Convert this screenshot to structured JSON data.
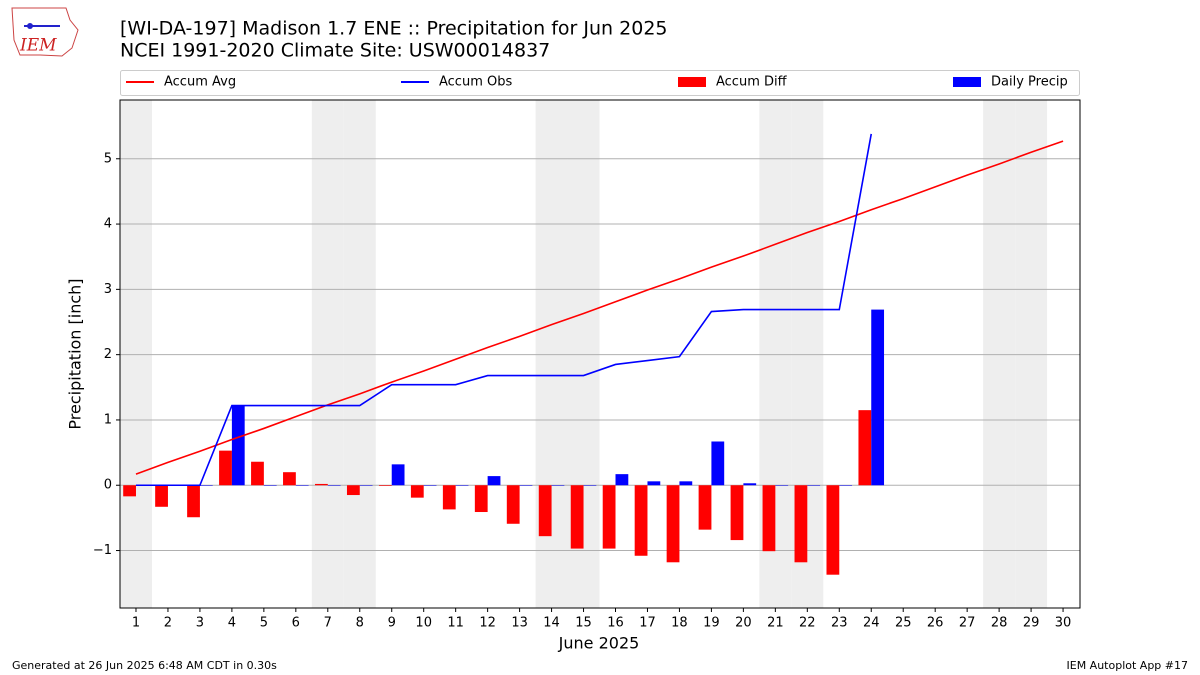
{
  "chart_data": {
    "type": "combo",
    "logo_text": "IEM",
    "title": "[WI-DA-197] Madison 1.7 ENE :: Precipitation for Jun 2025",
    "subtitle": "NCEI 1991-2020 Climate Site: USW00014837",
    "x_label": "June 2025",
    "y_label": "Precipitation [inch]",
    "footer_left": "Generated at 26 Jun 2025 6:48 AM CDT in 0.30s",
    "footer_right": "IEM Autoplot App #17",
    "x": [
      1,
      2,
      3,
      4,
      5,
      6,
      7,
      8,
      9,
      10,
      11,
      12,
      13,
      14,
      15,
      16,
      17,
      18,
      19,
      20,
      21,
      22,
      23,
      24,
      25,
      26,
      27,
      28,
      29,
      30
    ],
    "xlim": [
      0.5,
      30.53
    ],
    "xticks": [
      1,
      2,
      3,
      4,
      5,
      6,
      7,
      8,
      9,
      10,
      11,
      12,
      13,
      14,
      15,
      16,
      17,
      18,
      19,
      20,
      21,
      22,
      23,
      24,
      25,
      26,
      27,
      28,
      29,
      30
    ],
    "ylim": [
      -1.88,
      5.9
    ],
    "yticks": [
      {
        "value": -1,
        "label": "−1"
      },
      0,
      1,
      2,
      3,
      4,
      5
    ],
    "grid": true,
    "shaded_days": [
      1,
      7,
      8,
      14,
      15,
      21,
      22,
      28,
      29
    ],
    "series": [
      {
        "name": "Accum Avg",
        "type": "line",
        "color": "#ff0000",
        "values": [
          0.17,
          0.35,
          0.52,
          0.7,
          0.87,
          1.05,
          1.23,
          1.4,
          1.58,
          1.75,
          1.93,
          2.11,
          2.28,
          2.46,
          2.63,
          2.81,
          2.99,
          3.16,
          3.34,
          3.51,
          3.69,
          3.87,
          4.04,
          4.22,
          4.39,
          4.57,
          4.75,
          4.92,
          5.1,
          5.27
        ]
      },
      {
        "name": "Accum Obs",
        "type": "line",
        "color": "#0000ff",
        "values": [
          0,
          0,
          0,
          1.22,
          1.22,
          1.22,
          1.22,
          1.22,
          1.54,
          1.54,
          1.54,
          1.68,
          1.68,
          1.68,
          1.68,
          1.85,
          1.91,
          1.97,
          2.66,
          2.69,
          2.69,
          2.69,
          2.69,
          5.38,
          null,
          null,
          null,
          null,
          null,
          null
        ]
      },
      {
        "name": "Accum Diff",
        "type": "bar",
        "color": "#ff0000",
        "offset": -0.2,
        "values": [
          -0.17,
          -0.33,
          -0.49,
          0.53,
          0.36,
          0.2,
          0.02,
          -0.15,
          -0.01,
          -0.19,
          -0.37,
          -0.41,
          -0.59,
          -0.78,
          -0.97,
          -0.97,
          -1.08,
          -1.18,
          -0.68,
          -0.84,
          -1.01,
          -1.18,
          -1.37,
          1.15,
          null,
          null,
          null,
          null,
          null,
          null
        ]
      },
      {
        "name": "Daily Precip",
        "type": "bar",
        "color": "#0000ff",
        "offset": 0.2,
        "values": [
          0,
          0,
          0,
          1.22,
          0,
          0,
          0,
          0,
          0.32,
          0,
          0,
          0.14,
          0,
          0,
          0,
          0.17,
          0.06,
          0.06,
          0.67,
          0.03,
          0,
          0,
          0,
          2.69,
          null,
          null,
          null,
          null,
          null,
          null
        ]
      }
    ]
  }
}
